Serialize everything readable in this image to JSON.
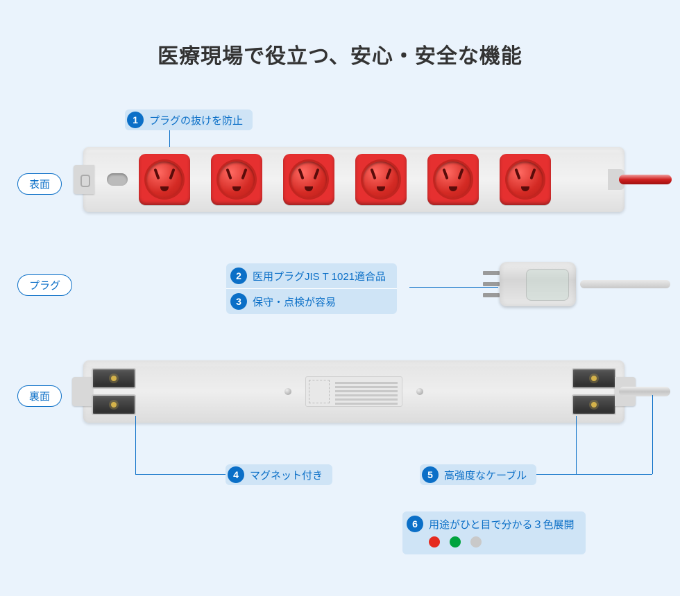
{
  "title": "医療現場で役立つ、安心・安全な機能",
  "side": {
    "front": "表面",
    "plug": "プラグ",
    "back": "裏面"
  },
  "features": {
    "f1": {
      "num": "1",
      "text": "プラグの抜けを防止"
    },
    "f2": {
      "num": "2",
      "text": "医用プラグJIS T 1021適合品"
    },
    "f3": {
      "num": "3",
      "text": "保守・点検が容易"
    },
    "f4": {
      "num": "4",
      "text": "マグネット付き"
    },
    "f5": {
      "num": "5",
      "text": "高強度なケーブル"
    },
    "f6": {
      "num": "6",
      "text": "用途がひと目で分かる３色展開"
    }
  },
  "colors": {
    "page_bg": "#eaf3fc",
    "accent_blue": "#0b6fc7",
    "pill_bg": "#cfe4f6",
    "outlet_red": "#e63030",
    "dot_colors": [
      "#e52b20",
      "#00a33e",
      "#c9c9c9"
    ]
  },
  "product": {
    "outlet_count": 6,
    "back_label_lines": 6
  }
}
